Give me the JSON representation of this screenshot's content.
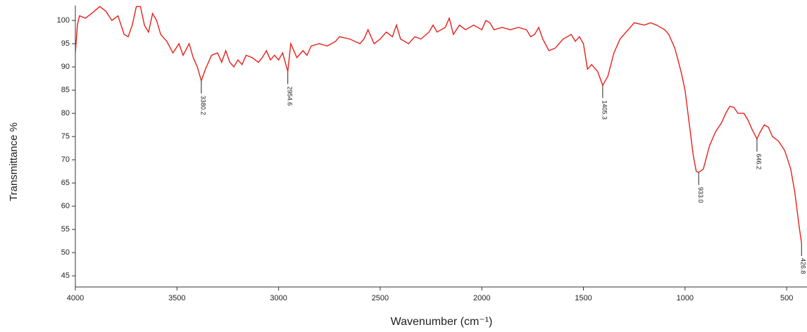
{
  "chart_data": {
    "type": "line",
    "x_label": "Wavenumber (cm⁻¹)",
    "y_label": "Transmittance %",
    "color": "#e8201a",
    "xlim": [
      4000,
      400
    ],
    "ylim": [
      42.6,
      103.2
    ],
    "xticks": [
      4000,
      3500,
      3000,
      2500,
      2000,
      1500,
      1000,
      500
    ],
    "yticks": [
      45,
      50,
      55,
      60,
      65,
      70,
      75,
      80,
      85,
      90,
      95,
      100
    ],
    "x": [
      4000,
      3990,
      3980,
      3950,
      3920,
      3880,
      3850,
      3820,
      3790,
      3760,
      3740,
      3720,
      3700,
      3680,
      3660,
      3640,
      3620,
      3600,
      3580,
      3550,
      3520,
      3490,
      3470,
      3440,
      3420,
      3400,
      3380.2,
      3360,
      3330,
      3300,
      3280,
      3260,
      3240,
      3220,
      3200,
      3180,
      3160,
      3130,
      3100,
      3080,
      3060,
      3040,
      3020,
      3000,
      2980,
      2954.6,
      2940,
      2910,
      2880,
      2860,
      2840,
      2800,
      2760,
      2720,
      2700,
      2650,
      2600,
      2580,
      2560,
      2530,
      2500,
      2470,
      2440,
      2420,
      2400,
      2360,
      2330,
      2300,
      2260,
      2240,
      2220,
      2180,
      2160,
      2140,
      2110,
      2080,
      2040,
      2000,
      1980,
      1960,
      1940,
      1900,
      1860,
      1820,
      1780,
      1760,
      1740,
      1720,
      1700,
      1670,
      1640,
      1600,
      1560,
      1540,
      1520,
      1500,
      1480,
      1460,
      1430,
      1405.3,
      1380,
      1350,
      1320,
      1280,
      1250,
      1200,
      1170,
      1140,
      1100,
      1080,
      1050,
      1020,
      1000,
      980,
      960,
      945,
      933,
      910,
      880,
      850,
      820,
      800,
      780,
      760,
      740,
      710,
      690,
      670,
      646.2,
      630,
      610,
      590,
      570,
      540,
      510,
      480,
      460,
      440,
      426.8
    ],
    "y": [
      93,
      99,
      101,
      100.5,
      101.5,
      103,
      102,
      100,
      101,
      97,
      96.5,
      99,
      103,
      103,
      99,
      97.5,
      101.5,
      100,
      97,
      95.5,
      93,
      95,
      92.5,
      95,
      92,
      90,
      87,
      89.5,
      92.5,
      93,
      91,
      93.5,
      91,
      90,
      91.5,
      90.5,
      92.5,
      92,
      91,
      92,
      93.5,
      91.5,
      92.5,
      91.5,
      93,
      89,
      95,
      92,
      93.5,
      92.5,
      94.5,
      95,
      94.5,
      95.5,
      96.5,
      96,
      95,
      96,
      98,
      95,
      96,
      97.5,
      96.5,
      99,
      96,
      95,
      96.5,
      96,
      97.5,
      99,
      97.5,
      98.5,
      100.5,
      97,
      99,
      98,
      99,
      98,
      100,
      99.5,
      98,
      98.5,
      98,
      98.5,
      98,
      96.5,
      97,
      98.5,
      96,
      93.5,
      94,
      96,
      97,
      95.5,
      96.5,
      95,
      89.5,
      90.5,
      89,
      86,
      88,
      93,
      96,
      98,
      99.5,
      99,
      99.5,
      99,
      98,
      97,
      94,
      89,
      85,
      78,
      71,
      67.5,
      67.3,
      68,
      73,
      76,
      78,
      80,
      81.5,
      81.3,
      80,
      80,
      78.5,
      76.5,
      74.5,
      76,
      77.5,
      77,
      75,
      74,
      72,
      68,
      63,
      56,
      52
    ],
    "peaks": [
      {
        "value": 3380.2,
        "label": "3380.2"
      },
      {
        "value": 2954.6,
        "label": "2954.6"
      },
      {
        "value": 1405.3,
        "label": "1405.3"
      },
      {
        "value": 933,
        "label": "933.0"
      },
      {
        "value": 646.2,
        "label": "646.2"
      },
      {
        "value": 426.8,
        "label": "426.8"
      }
    ]
  }
}
